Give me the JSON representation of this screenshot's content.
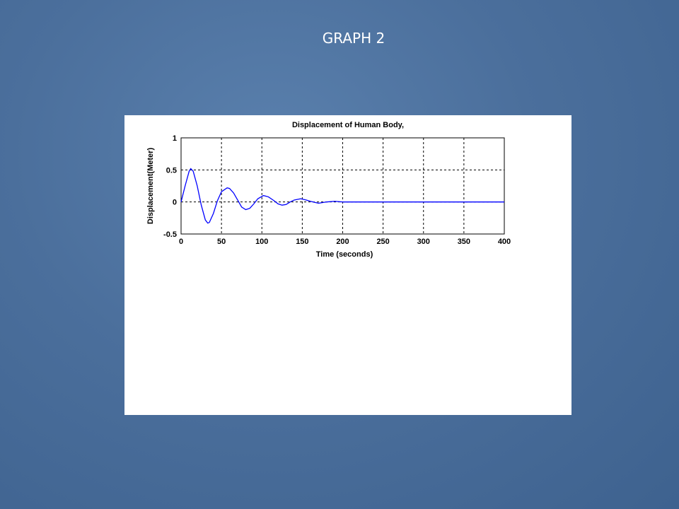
{
  "slide": {
    "title": "GRAPH 2"
  },
  "chart_data": {
    "type": "line",
    "title": "Displacement of Human Body,",
    "xlabel": "Time (seconds)",
    "ylabel": "Displacement(Meter)",
    "xlim": [
      0,
      400
    ],
    "ylim": [
      -0.5,
      1
    ],
    "xticks": [
      0,
      50,
      100,
      150,
      200,
      250,
      300,
      350,
      400
    ],
    "yticks": [
      -0.5,
      0,
      0.5,
      1
    ],
    "grid": true,
    "x": [
      0,
      5,
      10,
      12,
      15,
      20,
      25,
      30,
      33,
      35,
      40,
      45,
      50,
      57,
      60,
      65,
      70,
      75,
      80,
      85,
      90,
      95,
      102,
      108,
      115,
      120,
      125,
      130,
      135,
      140,
      148,
      155,
      160,
      170,
      180,
      190,
      200,
      220,
      240,
      260,
      280,
      300,
      320,
      340,
      360,
      380,
      400
    ],
    "series": [
      {
        "name": "Displacement",
        "color": "#0000ff",
        "values": [
          0,
          0.25,
          0.48,
          0.52,
          0.48,
          0.25,
          -0.05,
          -0.28,
          -0.33,
          -0.32,
          -0.18,
          0.02,
          0.16,
          0.22,
          0.21,
          0.14,
          0.03,
          -0.08,
          -0.12,
          -0.1,
          -0.03,
          0.05,
          0.1,
          0.08,
          0.02,
          -0.03,
          -0.05,
          -0.04,
          0,
          0.03,
          0.05,
          0.03,
          0.01,
          -0.02,
          0,
          0.01,
          0,
          0,
          0,
          0,
          0,
          0,
          0,
          0,
          0,
          0,
          0
        ]
      }
    ]
  }
}
